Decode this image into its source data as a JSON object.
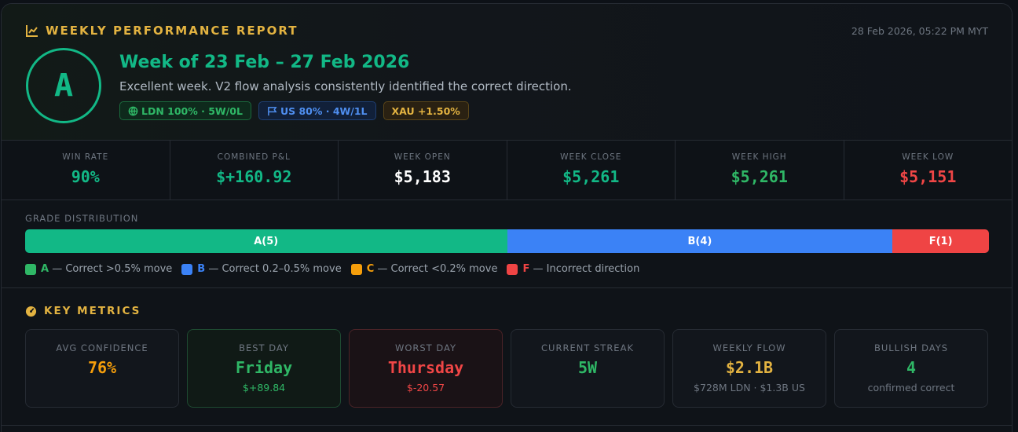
{
  "report": {
    "title": "WEEKLY PERFORMANCE REPORT",
    "timestamp": "28 Feb 2026, 05:22 PM MYT",
    "grade": "A",
    "week_title": "Week of 23 Feb – 27 Feb 2026",
    "summary": "Excellent week. V2 flow analysis consistently identified the correct direction.",
    "badges": {
      "ldn": "LDN 100% · 5W/0L",
      "us": "US 80% · 4W/1L",
      "xau": "XAU +1.50%"
    }
  },
  "stats": [
    {
      "label": "WIN RATE",
      "value": "90%",
      "color": "#12b886"
    },
    {
      "label": "COMBINED P&L",
      "value": "$+160.92",
      "color": "#12b886"
    },
    {
      "label": "WEEK OPEN",
      "value": "$5,183",
      "color": "#ffffff"
    },
    {
      "label": "WEEK CLOSE",
      "value": "$5,261",
      "color": "#12b886"
    },
    {
      "label": "WEEK HIGH",
      "value": "$5,261",
      "color": "#2fb766"
    },
    {
      "label": "WEEK LOW",
      "value": "$5,151",
      "color": "#f04646"
    }
  ],
  "distribution": {
    "label": "GRADE DISTRIBUTION",
    "segments": [
      {
        "label": "A(5)",
        "count": 5,
        "color": "#12b886"
      },
      {
        "label": "B(4)",
        "count": 4,
        "color": "#3b82f6"
      },
      {
        "label": "F(1)",
        "count": 1,
        "color": "#ef4444"
      }
    ],
    "legend": [
      {
        "letter": "A",
        "text": " — Correct >0.5% move",
        "color": "#2fb766"
      },
      {
        "letter": "B",
        "text": " — Correct 0.2–0.5% move",
        "color": "#3b82f6"
      },
      {
        "letter": "C",
        "text": " — Correct <0.2% move",
        "color": "#f59e0b"
      },
      {
        "letter": "F",
        "text": " — Incorrect direction",
        "color": "#ef4444"
      }
    ]
  },
  "key_metrics": {
    "title": "KEY METRICS",
    "avg_confidence": {
      "label": "AVG CONFIDENCE",
      "value": "76%",
      "color": "#f59e0b"
    },
    "best_day": {
      "label": "BEST DAY",
      "value": "Friday",
      "sub": "$+89.84",
      "color": "#2fb766"
    },
    "worst_day": {
      "label": "WORST DAY",
      "value": "Thursday",
      "sub": "$-20.57",
      "color": "#f04646"
    },
    "current_streak": {
      "label": "CURRENT STREAK",
      "value": "5W",
      "color": "#2fb766"
    },
    "weekly_flow": {
      "label": "WEEKLY FLOW",
      "value": "$2.1B",
      "sub": "$728M LDN · $1.3B US",
      "color": "#e3b341"
    },
    "bullish_days": {
      "label": "BULLISH DAYS",
      "value": "4",
      "sub": "confirmed correct",
      "color": "#2fb766"
    }
  },
  "icons": {
    "report": "chart-line-icon",
    "ldn": "globe-icon",
    "us": "flag-icon",
    "metrics": "gauge-icon"
  }
}
